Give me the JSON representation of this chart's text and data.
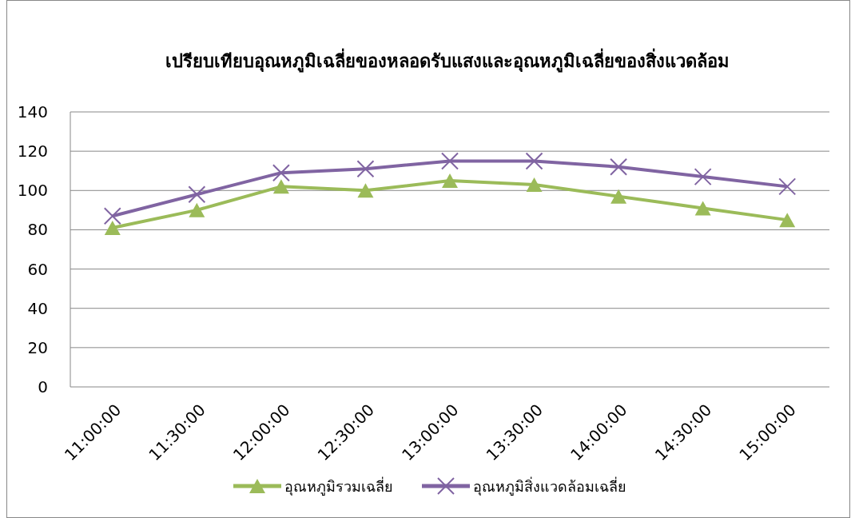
{
  "chart_data": {
    "type": "line",
    "title": "เปรียบเทียบอุณหภูมิเฉลี่ยของหลอดรับแสงและอุณหภูมิเฉลี่ยของสิ่งแวดล้อม",
    "categories": [
      "11:00:00",
      "11:30:00",
      "12:00:00",
      "12:30:00",
      "13:00:00",
      "13:30:00",
      "14:00:00",
      "14:30:00",
      "15:00:00"
    ],
    "series": [
      {
        "name": "อุณหภูมิรวมเฉลี่ย",
        "color": "#9bbb59",
        "marker": "triangle",
        "values": [
          81,
          90,
          102,
          100,
          105,
          103,
          97,
          91,
          85
        ]
      },
      {
        "name": "อุณหภูมิสิ่งแวดล้อมเฉลี่ย",
        "color": "#8064a2",
        "marker": "cross",
        "values": [
          87,
          98,
          109,
          111,
          115,
          115,
          112,
          107,
          102
        ]
      }
    ],
    "ylim": [
      0,
      140
    ],
    "yticks": [
      0,
      20,
      40,
      60,
      80,
      100,
      120,
      140
    ],
    "grid": "y",
    "legend": "bottom",
    "line_style": "solid"
  }
}
